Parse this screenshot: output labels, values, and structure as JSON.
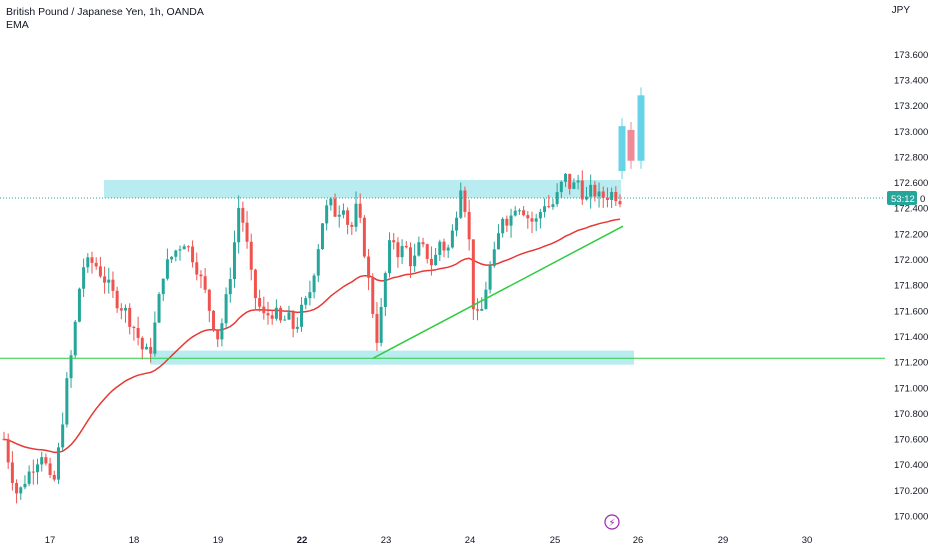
{
  "legend": {
    "line1": "British Pound / Japanese Yen, 1h, OANDA",
    "line2": "EMA"
  },
  "currency": "JPY",
  "countdown": "53:12",
  "colors": {
    "up": "#26a69a",
    "down": "#ef5350",
    "ema": "#e53935",
    "zone": "#7fdde6",
    "trend": "#2ecc40",
    "support": "#2ecc40",
    "projUp": "#66d3e6",
    "projDown": "#ef8a98"
  },
  "chart_data": {
    "type": "candlestick",
    "symbol": "GBPJPY",
    "y_ticks": [
      "173.600",
      "173.400",
      "173.200",
      "173.000",
      "172.800",
      "172.600",
      "172.400",
      "172.200",
      "172.000",
      "171.800",
      "171.600",
      "171.400",
      "171.200",
      "171.000",
      "170.800",
      "170.600",
      "170.400",
      "170.200",
      "170.000"
    ],
    "x_ticks": [
      {
        "label": "17",
        "bold": false
      },
      {
        "label": "18",
        "bold": false
      },
      {
        "label": "19",
        "bold": false
      },
      {
        "label": "22",
        "bold": true
      },
      {
        "label": "23",
        "bold": false
      },
      {
        "label": "24",
        "bold": false
      },
      {
        "label": "25",
        "bold": false
      },
      {
        "label": "26",
        "bold": false
      },
      {
        "label": "29",
        "bold": false
      },
      {
        "label": "30",
        "bold": false
      }
    ],
    "ylim": [
      169.94,
      173.74
    ],
    "last_price": 172.48,
    "resistance_zone": [
      172.48,
      172.62
    ],
    "support_zone": [
      171.18,
      171.29
    ],
    "support_line": 171.23,
    "trendline": [
      [
        22.8,
        171.23
      ],
      [
        25.75,
        172.26
      ]
    ],
    "ema_shown": true,
    "projection": [
      {
        "o": 172.69,
        "c": 173.04,
        "dir": "up"
      },
      {
        "o": 173.01,
        "c": 172.77,
        "dir": "down"
      },
      {
        "o": 172.77,
        "c": 173.28,
        "dir": "up"
      }
    ],
    "candles_note": "hourly candles, generated from visual path",
    "path": [
      [
        16.0,
        170.6
      ],
      [
        16.1,
        170.35
      ],
      [
        16.2,
        170.15
      ],
      [
        16.3,
        170.28
      ],
      [
        16.45,
        170.42
      ],
      [
        16.55,
        170.5
      ],
      [
        16.65,
        170.3
      ],
      [
        16.7,
        170.18
      ],
      [
        16.8,
        170.55
      ],
      [
        16.9,
        171.0
      ],
      [
        17.0,
        171.35
      ],
      [
        17.08,
        171.75
      ],
      [
        17.15,
        171.95
      ],
      [
        17.3,
        171.98
      ],
      [
        17.45,
        171.85
      ],
      [
        17.6,
        171.7
      ],
      [
        17.75,
        171.6
      ],
      [
        17.9,
        171.45
      ],
      [
        18.0,
        171.3
      ],
      [
        18.1,
        171.25
      ],
      [
        18.2,
        171.55
      ],
      [
        18.3,
        171.9
      ],
      [
        18.45,
        172.05
      ],
      [
        18.6,
        172.15
      ],
      [
        18.75,
        172.0
      ],
      [
        18.9,
        171.75
      ],
      [
        19.0,
        171.55
      ],
      [
        19.1,
        171.38
      ],
      [
        19.2,
        171.65
      ],
      [
        19.3,
        172.0
      ],
      [
        19.4,
        172.45
      ],
      [
        19.5,
        172.15
      ],
      [
        19.6,
        171.75
      ],
      [
        19.75,
        171.55
      ],
      [
        19.9,
        171.6
      ],
      [
        20.0,
        171.5
      ],
      [
        20.1,
        171.55
      ],
      [
        20.2,
        171.45
      ],
      [
        20.3,
        171.6
      ],
      [
        20.4,
        171.7
      ],
      [
        20.5,
        171.98
      ],
      [
        20.6,
        172.3
      ],
      [
        20.7,
        172.45
      ],
      [
        20.8,
        172.35
      ],
      [
        20.9,
        172.45
      ],
      [
        21.0,
        172.2
      ],
      [
        21.1,
        172.42
      ],
      [
        21.2,
        172.1
      ],
      [
        21.3,
        171.7
      ],
      [
        21.4,
        171.35
      ],
      [
        21.5,
        171.85
      ],
      [
        21.6,
        172.2
      ],
      [
        21.7,
        172.05
      ],
      [
        21.8,
        172.1
      ],
      [
        21.9,
        171.95
      ],
      [
        22.0,
        172.1
      ],
      [
        22.1,
        172.05
      ],
      [
        22.2,
        171.95
      ],
      [
        22.3,
        172.15
      ],
      [
        22.4,
        172.05
      ],
      [
        22.5,
        172.25
      ],
      [
        22.6,
        172.6
      ],
      [
        22.7,
        172.3
      ],
      [
        22.8,
        171.5
      ],
      [
        22.9,
        171.6
      ],
      [
        23.0,
        171.9
      ],
      [
        23.1,
        172.05
      ],
      [
        23.2,
        172.35
      ],
      [
        23.3,
        172.3
      ],
      [
        23.4,
        172.45
      ],
      [
        23.5,
        172.4
      ],
      [
        23.6,
        172.3
      ],
      [
        23.7,
        172.3
      ],
      [
        23.8,
        172.45
      ],
      [
        23.9,
        172.4
      ],
      [
        24.0,
        172.5
      ],
      [
        24.1,
        172.65
      ],
      [
        24.2,
        172.55
      ],
      [
        24.3,
        172.62
      ],
      [
        24.4,
        172.45
      ],
      [
        24.5,
        172.55
      ],
      [
        24.6,
        172.48
      ],
      [
        24.7,
        172.5
      ],
      [
        24.8,
        172.52
      ],
      [
        24.9,
        172.48
      ]
    ]
  }
}
